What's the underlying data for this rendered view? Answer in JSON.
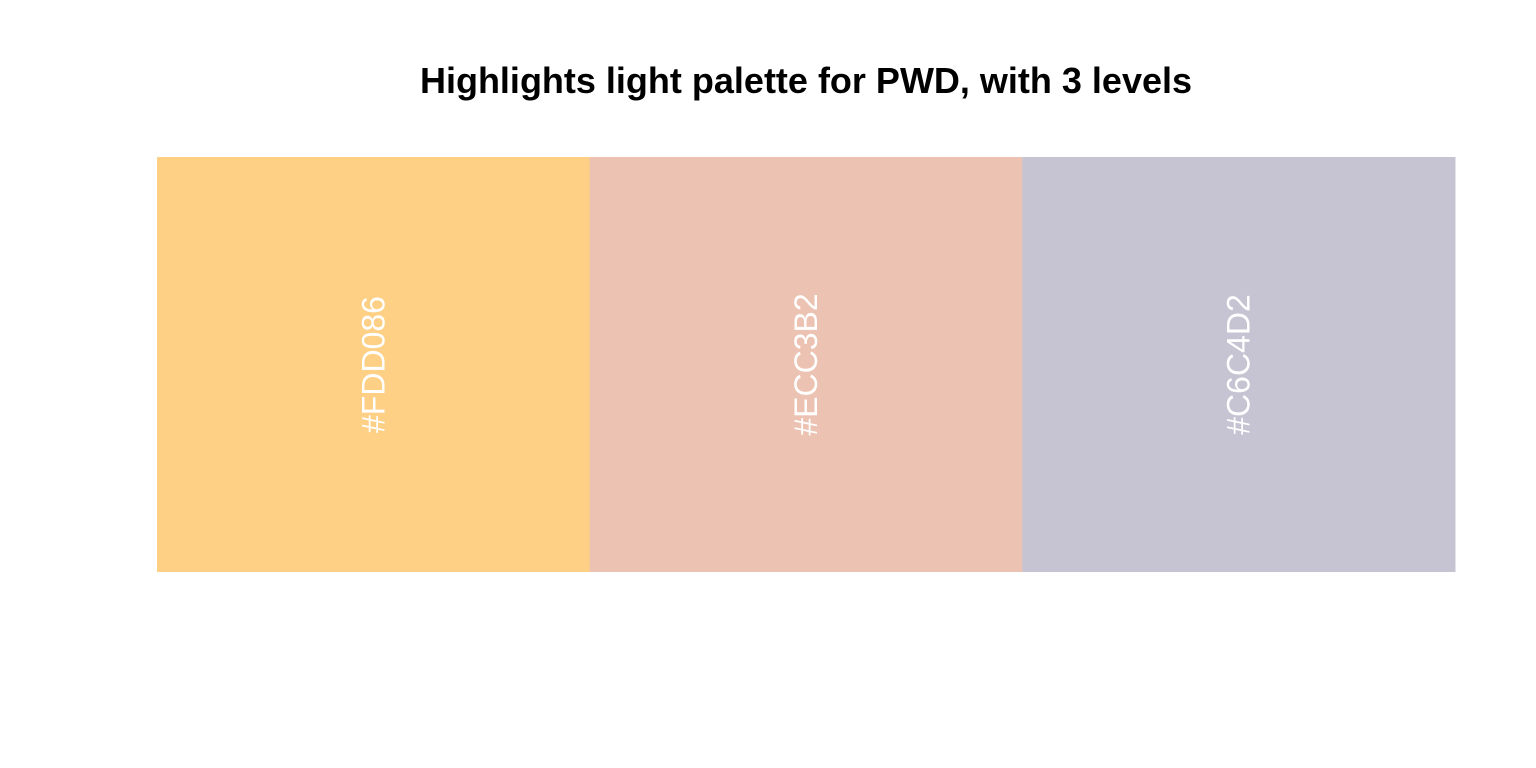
{
  "chart_data": {
    "type": "bar",
    "title": "Highlights light palette for PWD, with 3 levels",
    "categories": [
      "#FDD086",
      "#ECC3B2",
      "#C6C4D2"
    ],
    "values": [
      1,
      1,
      1
    ],
    "colors": [
      "#FDD086",
      "#ECC3B2",
      "#C6C4D2"
    ],
    "label_color": "#FFFFFF",
    "label_orientation": "vertical",
    "axes": "none",
    "grid": false,
    "legend": "none"
  }
}
